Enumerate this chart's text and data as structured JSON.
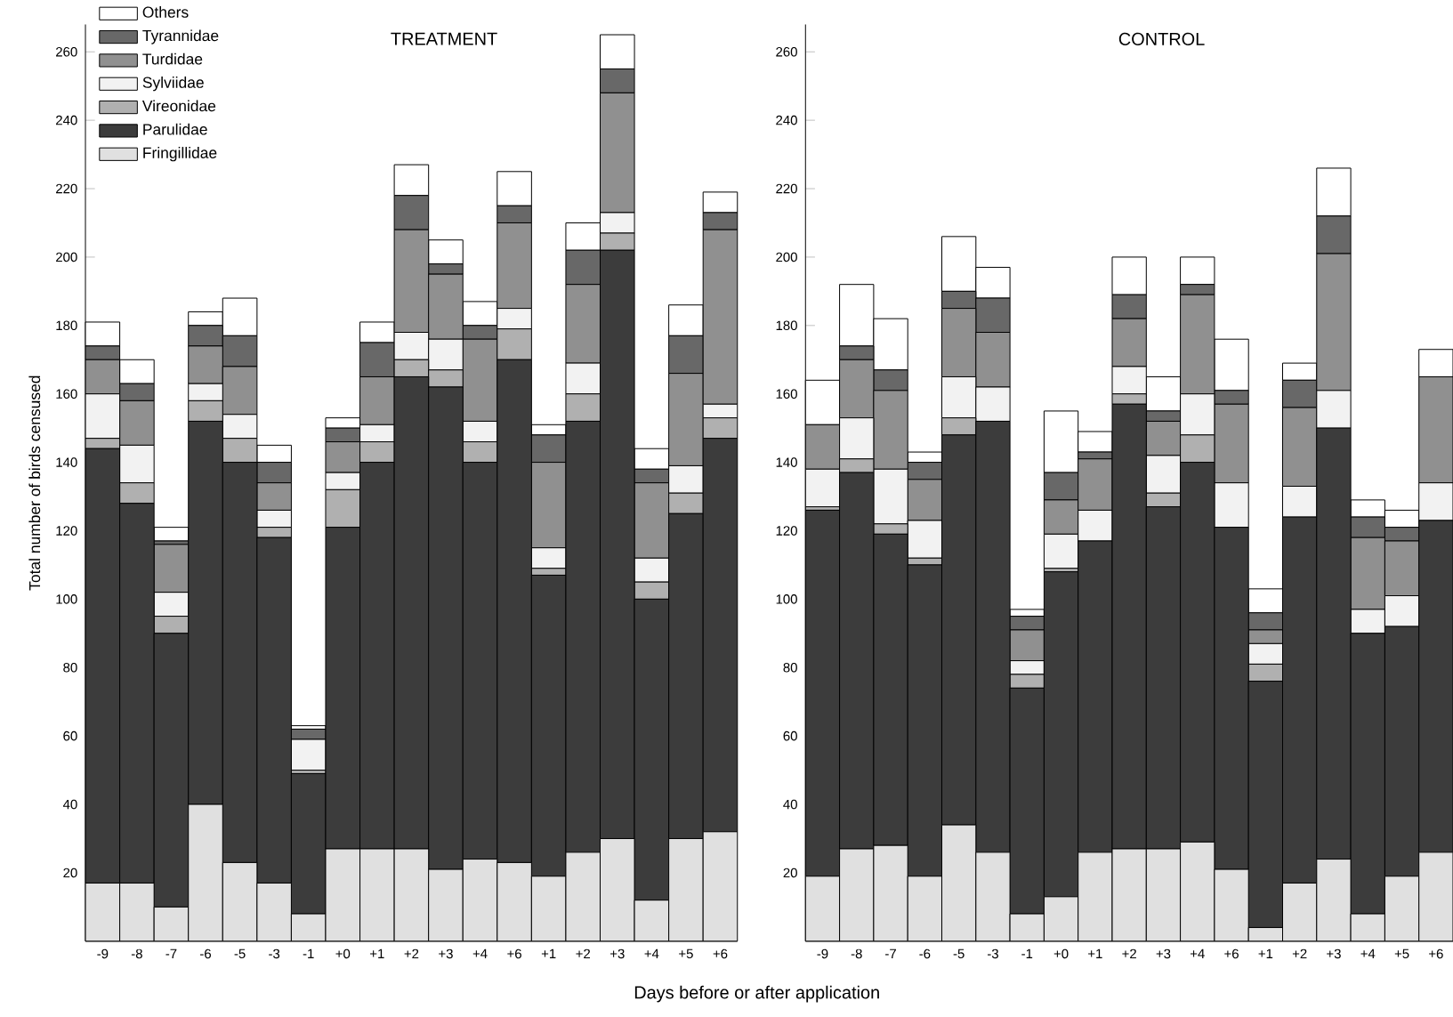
{
  "chart_data": [
    {
      "type": "bar",
      "stacked": true,
      "title": "TREATMENT",
      "xlabel": "Days before or after application",
      "ylabel": "Total number of birds censused",
      "categories": [
        "-9",
        "-8",
        "-7",
        "-6",
        "-5",
        "-3",
        "-1",
        "+0",
        "+1",
        "+2",
        "+3",
        "+4",
        "+6",
        "+1",
        "+2",
        "+3",
        "+4",
        "+5",
        "+6"
      ],
      "ylim": [
        0,
        268
      ],
      "yticks": [
        20,
        40,
        60,
        80,
        100,
        120,
        140,
        160,
        180,
        200,
        220,
        240,
        260
      ],
      "legend": "top left",
      "series": [
        {
          "name": "Fringillidae",
          "color": "#e0e0e0",
          "values": [
            17,
            17,
            10,
            40,
            23,
            17,
            8,
            27,
            27,
            27,
            21,
            24,
            23,
            19,
            26,
            30,
            12,
            30,
            32
          ]
        },
        {
          "name": "Parulidae",
          "color": "#3c3c3c",
          "values": [
            127,
            111,
            80,
            112,
            117,
            101,
            41,
            94,
            113,
            138,
            141,
            116,
            147,
            88,
            126,
            172,
            88,
            95,
            115
          ]
        },
        {
          "name": "Vireonidae",
          "color": "#b0b0b0",
          "values": [
            3,
            6,
            5,
            6,
            7,
            3,
            1,
            11,
            6,
            5,
            5,
            6,
            9,
            2,
            8,
            5,
            5,
            6,
            6
          ]
        },
        {
          "name": "Sylviidae",
          "color": "#f2f2f2",
          "values": [
            13,
            11,
            7,
            5,
            7,
            5,
            9,
            5,
            5,
            8,
            9,
            6,
            6,
            6,
            9,
            6,
            7,
            8,
            4
          ]
        },
        {
          "name": "Turdidae",
          "color": "#909090",
          "values": [
            10,
            13,
            14,
            11,
            14,
            8,
            0,
            9,
            14,
            30,
            19,
            24,
            25,
            25,
            23,
            35,
            22,
            27,
            51
          ]
        },
        {
          "name": "Tyrannidae",
          "color": "#686868",
          "values": [
            4,
            5,
            1,
            6,
            9,
            6,
            3,
            4,
            10,
            10,
            3,
            4,
            5,
            8,
            10,
            7,
            4,
            11,
            5
          ]
        },
        {
          "name": "Others",
          "color": "#ffffff",
          "values": [
            7,
            7,
            4,
            4,
            11,
            5,
            1,
            3,
            6,
            9,
            7,
            7,
            10,
            3,
            8,
            10,
            6,
            9,
            6
          ]
        }
      ]
    },
    {
      "type": "bar",
      "stacked": true,
      "title": "CONTROL",
      "categories": [
        "-9",
        "-8",
        "-7",
        "-6",
        "-5",
        "-3",
        "-1",
        "+0",
        "+1",
        "+2",
        "+3",
        "+4",
        "+6",
        "+1",
        "+2",
        "+3",
        "+4",
        "+5",
        "+6"
      ],
      "ylim": [
        0,
        268
      ],
      "yticks": [
        20,
        40,
        60,
        80,
        100,
        120,
        140,
        160,
        180,
        200,
        220,
        240,
        260
      ],
      "series": [
        {
          "color": "#e0e0e0",
          "values": [
            19,
            27,
            28,
            19,
            34,
            26,
            8,
            13,
            26,
            27,
            27,
            29,
            21,
            4,
            17,
            24,
            8,
            19,
            26
          ]
        },
        {
          "color": "#3c3c3c",
          "values": [
            107,
            110,
            91,
            91,
            114,
            126,
            66,
            95,
            91,
            130,
            100,
            111,
            100,
            72,
            107,
            126,
            82,
            73,
            97
          ]
        },
        {
          "color": "#b0b0b0",
          "values": [
            1,
            4,
            3,
            2,
            5,
            0,
            4,
            1,
            0,
            3,
            4,
            8,
            0,
            5,
            0,
            0,
            0,
            0,
            0
          ]
        },
        {
          "color": "#f2f2f2",
          "values": [
            11,
            12,
            16,
            11,
            12,
            10,
            4,
            10,
            9,
            8,
            11,
            12,
            13,
            6,
            9,
            11,
            7,
            9,
            11
          ]
        },
        {
          "color": "#909090",
          "values": [
            13,
            17,
            23,
            12,
            20,
            16,
            9,
            10,
            15,
            14,
            10,
            29,
            23,
            4,
            23,
            40,
            21,
            16,
            31
          ]
        },
        {
          "color": "#686868",
          "values": [
            0,
            4,
            6,
            5,
            5,
            10,
            4,
            8,
            2,
            7,
            3,
            3,
            4,
            5,
            8,
            11,
            6,
            4,
            0
          ]
        },
        {
          "color": "#ffffff",
          "values": [
            13,
            18,
            15,
            3,
            16,
            9,
            2,
            18,
            6,
            11,
            10,
            8,
            15,
            7,
            5,
            14,
            5,
            5,
            8
          ]
        }
      ]
    }
  ]
}
